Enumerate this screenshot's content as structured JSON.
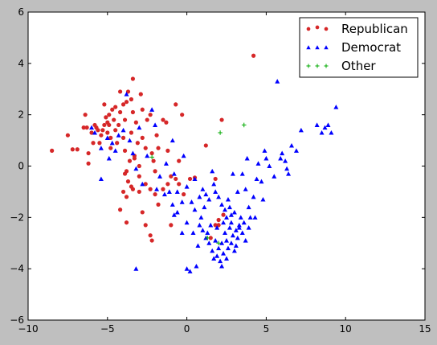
{
  "chart_data": {
    "type": "scatter",
    "title": "",
    "xlabel": "",
    "ylabel": "",
    "xlim": [
      -10,
      15
    ],
    "ylim": [
      -6,
      6
    ],
    "xticks": [
      -10,
      -5,
      0,
      5,
      10,
      15
    ],
    "yticks": [
      -6,
      -4,
      -2,
      0,
      2,
      4,
      6
    ],
    "grid": false,
    "legend_position": "top-right",
    "series": [
      {
        "name": "Republican",
        "marker": "circle",
        "color": "#d62728",
        "points": [
          [
            -8.5,
            0.6
          ],
          [
            -7.5,
            1.2
          ],
          [
            -7.2,
            0.65
          ],
          [
            -6.9,
            0.65
          ],
          [
            -6.5,
            1.5
          ],
          [
            -6.4,
            2.0
          ],
          [
            -6.3,
            1.5
          ],
          [
            -6.2,
            0.5
          ],
          [
            -6.2,
            0.1
          ],
          [
            -6.0,
            1.3
          ],
          [
            -5.9,
            0.9
          ],
          [
            -5.8,
            1.6
          ],
          [
            -5.7,
            1.5
          ],
          [
            -5.6,
            1.4
          ],
          [
            -5.5,
            0.9
          ],
          [
            -5.4,
            1.2
          ],
          [
            -5.3,
            1.4
          ],
          [
            -5.2,
            1.6
          ],
          [
            -5.2,
            2.4
          ],
          [
            -5.1,
            1.9
          ],
          [
            -5.0,
            1.7
          ],
          [
            -5.0,
            1.3
          ],
          [
            -4.9,
            2.0
          ],
          [
            -4.9,
            1.6
          ],
          [
            -4.8,
            1.1
          ],
          [
            -4.8,
            0.7
          ],
          [
            -4.7,
            2.2
          ],
          [
            -4.6,
            1.8
          ],
          [
            -4.5,
            2.3
          ],
          [
            -4.5,
            1.4
          ],
          [
            -4.4,
            0.9
          ],
          [
            -4.3,
            1.6
          ],
          [
            -4.2,
            2.1
          ],
          [
            -4.2,
            2.9
          ],
          [
            -4.0,
            2.4
          ],
          [
            -4.0,
            1.1
          ],
          [
            -3.9,
            1.8
          ],
          [
            -3.9,
            0.6
          ],
          [
            -3.8,
            2.5
          ],
          [
            -3.7,
            2.9
          ],
          [
            -3.6,
            0.2
          ],
          [
            -3.8,
            -0.2
          ],
          [
            -3.5,
            2.6
          ],
          [
            -3.5,
            1.3
          ],
          [
            -3.4,
            3.4
          ],
          [
            -3.4,
            2.1
          ],
          [
            -3.3,
            0.3
          ],
          [
            -3.2,
            1.7
          ],
          [
            -3.1,
            0.9
          ],
          [
            -3.0,
            0.0
          ],
          [
            -3.0,
            -0.4
          ],
          [
            -2.9,
            2.8
          ],
          [
            -2.8,
            1.1
          ],
          [
            -2.8,
            2.2
          ],
          [
            -2.6,
            0.7
          ],
          [
            -2.5,
            1.8
          ],
          [
            -2.3,
            2.0
          ],
          [
            -2.2,
            0.5
          ],
          [
            -2.1,
            0.2
          ],
          [
            -2.0,
            -0.2
          ],
          [
            -1.9,
            1.2
          ],
          [
            -1.8,
            0.7
          ],
          [
            -1.5,
            1.8
          ],
          [
            -1.3,
            1.7
          ],
          [
            -1.2,
            0.6
          ],
          [
            -0.7,
            2.4
          ],
          [
            -0.5,
            0.2
          ],
          [
            -0.3,
            2.0
          ],
          [
            -3.9,
            -0.3
          ],
          [
            -3.7,
            -0.6
          ],
          [
            -3.4,
            -0.9
          ],
          [
            -3.3,
            0.4
          ],
          [
            -3.0,
            -1.0
          ],
          [
            -2.6,
            -0.7
          ],
          [
            -2.3,
            -0.9
          ],
          [
            -2.0,
            -1.1
          ],
          [
            -1.5,
            -0.9
          ],
          [
            -1.2,
            -0.7
          ],
          [
            -1.0,
            -0.4
          ],
          [
            -0.7,
            -0.5
          ],
          [
            -0.5,
            -0.7
          ],
          [
            -0.2,
            -1.1
          ],
          [
            0.2,
            -0.5
          ],
          [
            0.5,
            -0.45
          ],
          [
            1.2,
            0.8
          ],
          [
            1.8,
            -0.5
          ],
          [
            2.0,
            -2.3
          ],
          [
            2.2,
            1.8
          ],
          [
            -2.6,
            -2.3
          ],
          [
            -2.3,
            -2.7
          ],
          [
            -2.2,
            -2.9
          ],
          [
            -3.8,
            -1.2
          ],
          [
            -3.8,
            -2.2
          ],
          [
            -4.2,
            -1.7
          ],
          [
            -1.8,
            -1.5
          ],
          [
            -3.5,
            -0.8
          ],
          [
            1.8,
            -2.3
          ],
          [
            2.0,
            -2.1
          ],
          [
            2.3,
            -1.9
          ],
          [
            1.5,
            -2.8
          ],
          [
            4.2,
            4.3
          ],
          [
            -4.0,
            -1.0
          ],
          [
            -2.8,
            -1.8
          ],
          [
            -1.0,
            -2.3
          ]
        ]
      },
      {
        "name": "Democrat",
        "marker": "triangle",
        "color": "#0000ff",
        "points": [
          [
            -6.0,
            1.5
          ],
          [
            -5.8,
            1.3
          ],
          [
            -5.4,
            0.7
          ],
          [
            -5.4,
            -0.5
          ],
          [
            -5.0,
            1.1
          ],
          [
            -4.9,
            0.3
          ],
          [
            -4.7,
            0.9
          ],
          [
            -4.5,
            0.6
          ],
          [
            -4.3,
            1.2
          ],
          [
            -4.0,
            1.4
          ],
          [
            -3.8,
            2.8
          ],
          [
            -3.6,
            1.0
          ],
          [
            -3.4,
            0.5
          ],
          [
            -3.2,
            -0.1
          ],
          [
            -3.0,
            1.5
          ],
          [
            -2.8,
            -0.7
          ],
          [
            -2.5,
            0.4
          ],
          [
            -2.2,
            2.2
          ],
          [
            -2.0,
            1.6
          ],
          [
            -1.7,
            -0.4
          ],
          [
            -1.3,
            0.1
          ],
          [
            -1.1,
            -1.0
          ],
          [
            -0.9,
            1.0
          ],
          [
            -0.8,
            -0.3
          ],
          [
            -0.6,
            -1.0
          ],
          [
            -0.3,
            -1.4
          ],
          [
            -0.2,
            0.4
          ],
          [
            0.0,
            -0.8
          ],
          [
            0.3,
            -1.4
          ],
          [
            0.5,
            -0.5
          ],
          [
            0.8,
            -1.2
          ],
          [
            1.0,
            -0.9
          ],
          [
            1.2,
            -1.1
          ],
          [
            1.4,
            -1.3
          ],
          [
            1.6,
            -0.2
          ],
          [
            1.7,
            -0.7
          ],
          [
            1.8,
            -1.0
          ],
          [
            2.0,
            -1.2
          ],
          [
            2.2,
            -1.5
          ],
          [
            2.4,
            -1.7
          ],
          [
            2.5,
            -2.0
          ],
          [
            2.6,
            -1.3
          ],
          [
            2.8,
            -2.2
          ],
          [
            3.0,
            -1.8
          ],
          [
            3.2,
            -1.0
          ],
          [
            3.3,
            -2.4
          ],
          [
            3.5,
            -0.3
          ],
          [
            3.7,
            -0.9
          ],
          [
            3.9,
            -1.6
          ],
          [
            4.0,
            -2.0
          ],
          [
            4.2,
            -1.2
          ],
          [
            4.4,
            -0.5
          ],
          [
            4.5,
            0.1
          ],
          [
            4.7,
            -0.6
          ],
          [
            4.8,
            -1.3
          ],
          [
            5.0,
            0.3
          ],
          [
            5.2,
            0.0
          ],
          [
            5.5,
            -0.4
          ],
          [
            5.7,
            3.3
          ],
          [
            5.9,
            0.3
          ],
          [
            6.0,
            0.5
          ],
          [
            6.2,
            0.2
          ],
          [
            6.4,
            -0.3
          ],
          [
            6.6,
            0.8
          ],
          [
            6.9,
            0.6
          ],
          [
            7.2,
            1.4
          ],
          [
            7.5,
            3.6
          ],
          [
            8.2,
            1.6
          ],
          [
            8.5,
            1.3
          ],
          [
            8.7,
            1.5
          ],
          [
            8.9,
            1.6
          ],
          [
            9.1,
            1.3
          ],
          [
            9.4,
            2.3
          ],
          [
            1.0,
            -2.5
          ],
          [
            1.2,
            -2.8
          ],
          [
            1.4,
            -3.0
          ],
          [
            1.6,
            -3.3
          ],
          [
            1.7,
            -3.6
          ],
          [
            1.8,
            -2.9
          ],
          [
            2.0,
            -3.2
          ],
          [
            2.1,
            -3.7
          ],
          [
            2.2,
            -3.0
          ],
          [
            2.3,
            -3.4
          ],
          [
            2.4,
            -2.6
          ],
          [
            2.5,
            -2.9
          ],
          [
            2.6,
            -3.2
          ],
          [
            2.7,
            -2.4
          ],
          [
            2.8,
            -3.0
          ],
          [
            2.9,
            -2.7
          ],
          [
            3.0,
            -3.3
          ],
          [
            3.1,
            -2.5
          ],
          [
            3.2,
            -2.8
          ],
          [
            3.3,
            -2.3
          ],
          [
            3.4,
            -2.0
          ],
          [
            3.5,
            -2.6
          ],
          [
            3.6,
            -2.2
          ],
          [
            3.7,
            -2.9
          ],
          [
            0.0,
            -2.2
          ],
          [
            -0.3,
            -2.6
          ],
          [
            -0.6,
            -1.8
          ],
          [
            0.4,
            -2.6
          ],
          [
            0.7,
            -3.1
          ],
          [
            0.9,
            -2.0
          ],
          [
            1.3,
            -2.6
          ],
          [
            0.2,
            -4.1
          ],
          [
            0.0,
            -4.0
          ],
          [
            0.6,
            -3.9
          ],
          [
            -3.2,
            -4.0
          ],
          [
            1.5,
            -2.3
          ],
          [
            1.9,
            -2.4
          ],
          [
            0.5,
            -1.7
          ],
          [
            -0.9,
            -1.5
          ],
          [
            -1.9,
            -0.9
          ],
          [
            -1.4,
            -1.1
          ],
          [
            -0.8,
            -1.9
          ],
          [
            0.8,
            -2.3
          ],
          [
            1.1,
            -1.6
          ],
          [
            2.7,
            -1.6
          ],
          [
            3.9,
            -2.4
          ],
          [
            4.3,
            -2.0
          ],
          [
            1.9,
            -3.5
          ],
          [
            2.3,
            -2.2
          ],
          [
            2.8,
            -1.9
          ],
          [
            2.5,
            -3.6
          ],
          [
            2.2,
            -3.9
          ],
          [
            3.1,
            -3.1
          ],
          [
            6.3,
            -0.1
          ],
          [
            4.9,
            0.6
          ],
          [
            3.8,
            0.3
          ],
          [
            2.9,
            -0.3
          ]
        ]
      },
      {
        "name": "Other",
        "marker": "plus",
        "color": "#00aa00",
        "points": [
          [
            3.6,
            1.6
          ],
          [
            2.1,
            1.3
          ],
          [
            1.3,
            -2.8
          ],
          [
            2.0,
            -3.0
          ],
          [
            -2.2,
            0.35
          ]
        ]
      }
    ]
  }
}
